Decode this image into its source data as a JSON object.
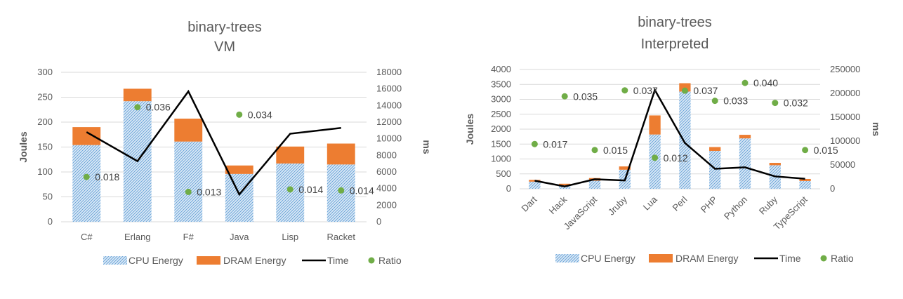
{
  "chart_data": [
    {
      "type": "bar",
      "title": "binary-trees",
      "subtitle": "VM",
      "xlabel": "",
      "ylabel": "Joules",
      "y2label": "ms",
      "stacked": true,
      "categories": [
        "C#",
        "Erlang",
        "F#",
        "Java",
        "Lisp",
        "Racket"
      ],
      "ylim": [
        0,
        300
      ],
      "yticks": [
        "0",
        "50",
        "100",
        "150",
        "200",
        "250",
        "300"
      ],
      "y2lim": [
        0,
        18000
      ],
      "y2ticks": [
        "0",
        "2000",
        "4000",
        "6000",
        "8000",
        "10000",
        "12000",
        "14000",
        "16000",
        "18000"
      ],
      "series": [
        {
          "name": "CPU Energy",
          "type": "bar",
          "values": [
            154,
            242,
            161,
            96,
            117,
            115
          ]
        },
        {
          "name": "DRAM Energy",
          "type": "bar",
          "values": [
            36,
            25,
            46,
            17,
            34,
            42
          ]
        },
        {
          "name": "Time",
          "type": "line",
          "axis": "secondary",
          "values": [
            10800,
            7300,
            15700,
            3300,
            10600,
            11300
          ]
        },
        {
          "name": "Ratio",
          "type": "scatter",
          "values": [
            0.018,
            0.036,
            0.013,
            0.034,
            0.014,
            0.014
          ],
          "labels": [
            "0.018",
            "0.036",
            "0.013",
            "0.034",
            "0.014",
            "0.014"
          ],
          "plot_y": [
            90,
            230,
            60,
            215,
            65,
            63
          ]
        }
      ],
      "grid": true,
      "legend": "bottom",
      "colors": {
        "cpu": "#9dc3e6",
        "cpu_edge": "#5b9bd5",
        "dram": "#ed7d31",
        "time": "#000000",
        "ratio": "#70ad47"
      }
    },
    {
      "type": "bar",
      "title": "binary-trees",
      "subtitle": "Interpreted",
      "xlabel": "",
      "ylabel": "Joules",
      "y2label": "ms",
      "stacked": true,
      "categories": [
        "Dart",
        "Hack",
        "JavaScript",
        "Jruby",
        "Lua",
        "Perl",
        "PHP",
        "Python",
        "Ruby",
        "TypeScript"
      ],
      "ylim": [
        0,
        4000
      ],
      "yticks": [
        "0",
        "500",
        "1000",
        "1500",
        "2000",
        "2500",
        "3000",
        "3500",
        "4000"
      ],
      "y2lim": [
        0,
        250000
      ],
      "y2ticks": [
        "0",
        "50000",
        "100000",
        "150000",
        "200000",
        "250000"
      ],
      "series": [
        {
          "name": "CPU Energy",
          "type": "bar",
          "values": [
            240,
            120,
            270,
            640,
            1820,
            3260,
            1270,
            1690,
            790,
            260
          ]
        },
        {
          "name": "DRAM Energy",
          "type": "bar",
          "values": [
            60,
            50,
            90,
            110,
            640,
            280,
            130,
            120,
            80,
            70
          ]
        },
        {
          "name": "Time",
          "type": "line",
          "axis": "secondary",
          "values": [
            17000,
            5000,
            20000,
            17500,
            207000,
            96000,
            42000,
            45000,
            26000,
            21000
          ]
        },
        {
          "name": "Ratio",
          "type": "scatter",
          "values": [
            0.017,
            0.035,
            0.015,
            0.037,
            0.012,
            0.037,
            0.033,
            0.04,
            0.032,
            0.015
          ],
          "labels": [
            "0.017",
            "0.035",
            "0.015",
            "0.037",
            "0.012",
            "0.037",
            "0.033",
            "0.040",
            "0.032",
            "0.015"
          ],
          "plot_y": [
            1500,
            3100,
            1300,
            3300,
            1040,
            3290,
            2950,
            3550,
            2880,
            1300
          ]
        }
      ],
      "grid": true,
      "legend": "bottom",
      "colors": {
        "cpu": "#9dc3e6",
        "cpu_edge": "#5b9bd5",
        "dram": "#ed7d31",
        "time": "#000000",
        "ratio": "#70ad47"
      }
    }
  ]
}
